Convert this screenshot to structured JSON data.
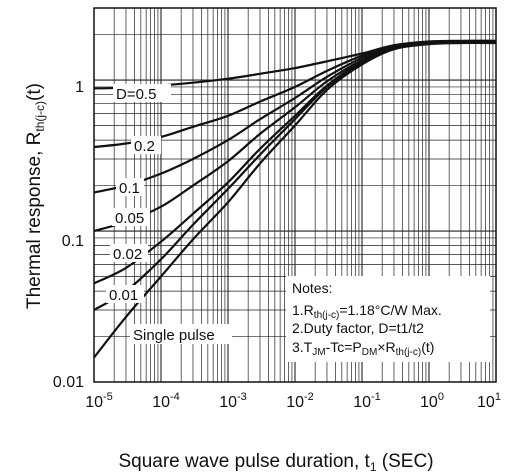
{
  "chart_data": {
    "type": "line",
    "title": "",
    "x_scale": "log",
    "y_scale": "log",
    "xlim": [
      1e-05,
      10
    ],
    "ylim": [
      0.01,
      3
    ],
    "grid": true,
    "xlabel": {
      "main": "Square wave pulse duration, t",
      "sub": "1",
      "tail": " (SEC)"
    },
    "ylabel": {
      "main": "Thermal response, R",
      "sub": "th(j-c)",
      "tail": "(t)"
    },
    "x_ticks": [
      {
        "base": "10",
        "exp": "-5",
        "value": 1e-05
      },
      {
        "base": "10",
        "exp": "-4",
        "value": 0.0001
      },
      {
        "base": "10",
        "exp": "-3",
        "value": 0.001
      },
      {
        "base": "10",
        "exp": "-2",
        "value": 0.01
      },
      {
        "base": "10",
        "exp": "-1",
        "value": 0.1
      },
      {
        "base": "10",
        "exp": "0",
        "value": 1
      },
      {
        "base": "10",
        "exp": "1",
        "value": 10
      }
    ],
    "y_ticks": [
      {
        "label": "0.01",
        "value": 0.01
      },
      {
        "label": "0.1",
        "value": 0.1
      },
      {
        "label": "1",
        "value": 1
      }
    ],
    "x": [
      1e-05,
      3e-05,
      0.0001,
      0.0003,
      0.001,
      0.003,
      0.01,
      0.03,
      0.1,
      0.3,
      1,
      3,
      10
    ],
    "series": [
      {
        "name": "D=0.5",
        "values": [
          0.88,
          0.89,
          0.92,
          0.96,
          1.02,
          1.1,
          1.2,
          1.33,
          1.5,
          1.7,
          1.8,
          1.82,
          1.82
        ]
      },
      {
        "name": "0.2",
        "values": [
          0.36,
          0.38,
          0.42,
          0.49,
          0.58,
          0.72,
          0.9,
          1.15,
          1.45,
          1.68,
          1.78,
          1.8,
          1.8
        ]
      },
      {
        "name": "0.1",
        "values": [
          0.18,
          0.2,
          0.24,
          0.3,
          0.4,
          0.55,
          0.76,
          1.05,
          1.4,
          1.65,
          1.76,
          1.79,
          1.79
        ]
      },
      {
        "name": "0.05",
        "values": [
          0.1,
          0.115,
          0.145,
          0.2,
          0.29,
          0.44,
          0.66,
          0.98,
          1.35,
          1.63,
          1.75,
          1.78,
          1.78
        ]
      },
      {
        "name": "0.02",
        "values": [
          0.045,
          0.057,
          0.085,
          0.13,
          0.21,
          0.35,
          0.58,
          0.92,
          1.32,
          1.62,
          1.74,
          1.77,
          1.77
        ]
      },
      {
        "name": "0.01",
        "values": [
          0.03,
          0.04,
          0.065,
          0.11,
          0.19,
          0.32,
          0.55,
          0.9,
          1.3,
          1.61,
          1.74,
          1.77,
          1.77
        ]
      },
      {
        "name": "Single pulse",
        "values": [
          0.0145,
          0.027,
          0.05,
          0.088,
          0.155,
          0.28,
          0.5,
          0.86,
          1.27,
          1.6,
          1.73,
          1.76,
          1.76
        ]
      }
    ],
    "notes": {
      "heading": "Notes:",
      "line1": {
        "prefix": "1.R",
        "sub": "th(j-c)",
        "suffix": "=1.18°C/W Max."
      },
      "line2": {
        "text": "2.Duty factor, D=t1/t2"
      },
      "line3": {
        "p1": "3.T",
        "s1": "JM",
        "p2": "-Tc=P",
        "s2": "DM",
        "p3": "×R",
        "s3": "th(j-c)",
        "p4": "(t)"
      }
    }
  }
}
